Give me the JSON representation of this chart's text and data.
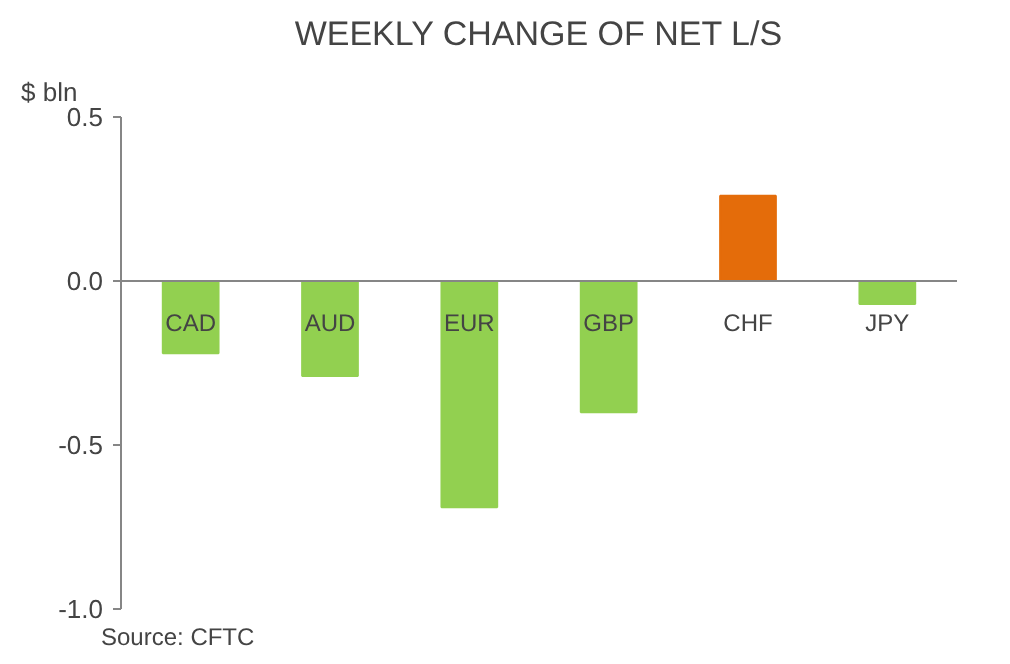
{
  "chart_data": {
    "type": "bar",
    "title": "WEEKLY CHANGE OF NET L/S",
    "ylabel": "$ bln",
    "categories": [
      "CAD",
      "AUD",
      "EUR",
      "GBP",
      "CHF",
      "JPY"
    ],
    "values": [
      -0.22,
      -0.29,
      -0.69,
      -0.4,
      0.26,
      -0.07
    ],
    "colors": [
      "#92d050",
      "#92d050",
      "#92d050",
      "#92d050",
      "#e46c0a",
      "#92d050"
    ],
    "ylim": [
      -1.0,
      0.5
    ],
    "yticks": [
      {
        "value": 0.5,
        "label": "0.5"
      },
      {
        "value": 0.0,
        "label": "0.0"
      },
      {
        "value": -0.5,
        "label": "-0.5"
      },
      {
        "value": -1.0,
        "label": "-1.0"
      }
    ],
    "grid": false,
    "annotations": [
      "Source: CFTC"
    ]
  }
}
